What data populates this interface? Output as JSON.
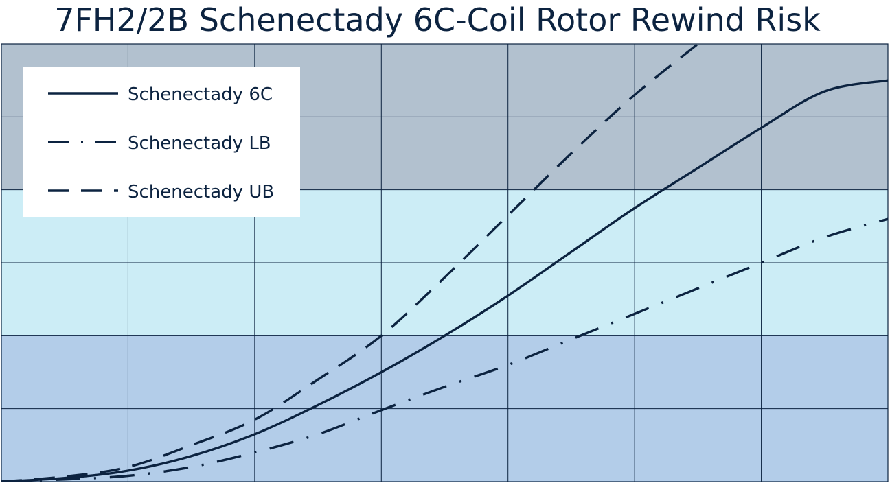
{
  "chart_data": {
    "type": "line",
    "title": "7FH2/2B Schenectady 6C-Coil Rotor Rewind Risk",
    "xlabel": "",
    "ylabel": "",
    "xlim": [
      0,
      7
    ],
    "ylim": [
      0,
      6
    ],
    "grid": true,
    "legend_position": "top-left",
    "risk_bands": [
      {
        "from": 0,
        "to": 2,
        "color": "#b3cde9"
      },
      {
        "from": 2,
        "to": 4,
        "color": "#ccedf6"
      },
      {
        "from": 4,
        "to": 6,
        "color": "#b2c1cf"
      }
    ],
    "line_color": "#0c2340",
    "series": [
      {
        "name": "Schenectady 6C",
        "style": "solid",
        "points": [
          [
            0,
            0
          ],
          [
            0.5,
            0.05
          ],
          [
            1,
            0.15
          ],
          [
            1.5,
            0.35
          ],
          [
            2,
            0.65
          ],
          [
            2.5,
            1.05
          ],
          [
            3,
            1.5
          ],
          [
            3.5,
            2.0
          ],
          [
            4,
            2.55
          ],
          [
            4.5,
            3.15
          ],
          [
            5,
            3.75
          ],
          [
            5.5,
            4.3
          ],
          [
            6,
            4.85
          ],
          [
            6.5,
            5.35
          ],
          [
            7,
            5.5
          ]
        ]
      },
      {
        "name": "Schenectady LB",
        "style": "dash-dot",
        "points": [
          [
            0,
            0
          ],
          [
            0.5,
            0.03
          ],
          [
            1,
            0.08
          ],
          [
            1.5,
            0.2
          ],
          [
            2,
            0.4
          ],
          [
            2.5,
            0.65
          ],
          [
            3,
            0.98
          ],
          [
            3.5,
            1.3
          ],
          [
            4,
            1.6
          ],
          [
            4.5,
            1.95
          ],
          [
            5,
            2.3
          ],
          [
            5.5,
            2.65
          ],
          [
            6,
            3.0
          ],
          [
            6.5,
            3.35
          ],
          [
            7,
            3.6
          ]
        ]
      },
      {
        "name": "Schenectady UB",
        "style": "dash",
        "points": [
          [
            0,
            0
          ],
          [
            0.5,
            0.07
          ],
          [
            1,
            0.2
          ],
          [
            1.5,
            0.5
          ],
          [
            2,
            0.85
          ],
          [
            2.5,
            1.4
          ],
          [
            3,
            2.0
          ],
          [
            3.5,
            2.8
          ],
          [
            4,
            3.65
          ],
          [
            4.5,
            4.5
          ],
          [
            5,
            5.3
          ],
          [
            5.5,
            6.0
          ]
        ]
      }
    ]
  }
}
